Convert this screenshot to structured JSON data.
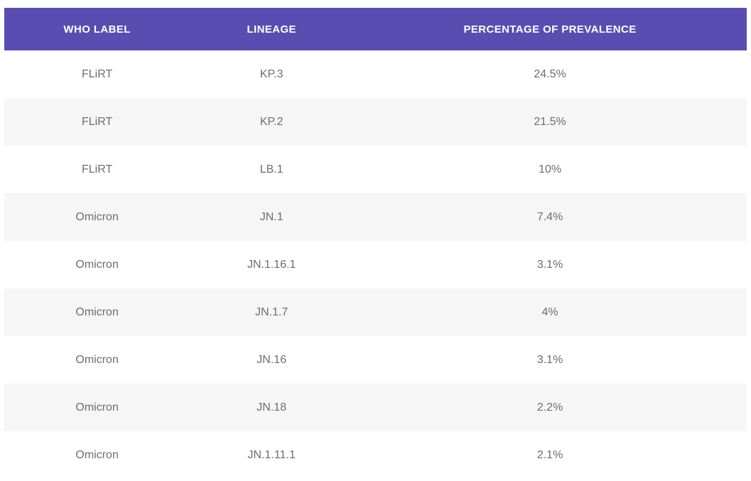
{
  "table": {
    "columns": [
      "WHO LABEL",
      "LINEAGE",
      "PERCENTAGE OF PREVALENCE"
    ],
    "rows": [
      {
        "who_label": "FLiRT",
        "lineage": "KP.3",
        "prevalence": "24.5%"
      },
      {
        "who_label": "FLiRT",
        "lineage": "KP.2",
        "prevalence": "21.5%"
      },
      {
        "who_label": "FLiRT",
        "lineage": "LB.1",
        "prevalence": "10%"
      },
      {
        "who_label": "Omicron",
        "lineage": "JN.1",
        "prevalence": "7.4%"
      },
      {
        "who_label": "Omicron",
        "lineage": "JN.1.16.1",
        "prevalence": "3.1%"
      },
      {
        "who_label": "Omicron",
        "lineage": "JN.1.7",
        "prevalence": "4%"
      },
      {
        "who_label": "Omicron",
        "lineage": "JN.16",
        "prevalence": "3.1%"
      },
      {
        "who_label": "Omicron",
        "lineage": "JN.18",
        "prevalence": "2.2%"
      },
      {
        "who_label": "Omicron",
        "lineage": "JN.1.11.1",
        "prevalence": "2.1%"
      }
    ]
  },
  "colors": {
    "header_bg": "#5a4db1",
    "header_text": "#ffffff",
    "row_bg": "#ffffff",
    "row_alt_bg": "#f6f6f6",
    "body_text": "#6d6d6d"
  },
  "chart_data": {
    "type": "table",
    "title": "",
    "columns": [
      "WHO LABEL",
      "LINEAGE",
      "PERCENTAGE OF PREVALENCE"
    ],
    "rows": [
      [
        "FLiRT",
        "KP.3",
        "24.5%"
      ],
      [
        "FLiRT",
        "KP.2",
        "21.5%"
      ],
      [
        "FLiRT",
        "LB.1",
        "10%"
      ],
      [
        "Omicron",
        "JN.1",
        "7.4%"
      ],
      [
        "Omicron",
        "JN.1.16.1",
        "3.1%"
      ],
      [
        "Omicron",
        "JN.1.7",
        "4%"
      ],
      [
        "Omicron",
        "JN.16",
        "3.1%"
      ],
      [
        "Omicron",
        "JN.18",
        "2.2%"
      ],
      [
        "Omicron",
        "JN.1.11.1",
        "2.1%"
      ]
    ],
    "prevalence_values_percent": [
      24.5,
      21.5,
      10,
      7.4,
      3.1,
      4,
      3.1,
      2.2,
      2.1
    ],
    "layout": {
      "zebra_striping": true,
      "striped_rows": "even",
      "header_fill": "#5a4db1"
    }
  }
}
